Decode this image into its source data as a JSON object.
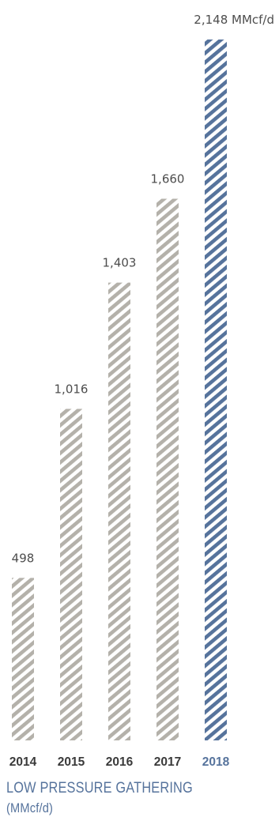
{
  "chart_data": {
    "type": "bar",
    "categories": [
      "2014",
      "2015",
      "2016",
      "2017",
      "2018"
    ],
    "values": [
      498,
      1016,
      1403,
      1660,
      2148
    ],
    "value_labels": [
      "498",
      "1,016",
      "1,403",
      "1,660",
      "2,148 MMcf/d"
    ],
    "title": "LOW PRESSURE GATHERING",
    "subtitle": "(MMcf/d)",
    "xlabel": "",
    "ylabel": "",
    "ylim": [
      0,
      2148
    ],
    "grid": false,
    "legend": "none",
    "highlight_index": 4
  },
  "colors": {
    "bar": "#b4b1aa",
    "highlight": "#56739c",
    "year_text": "#3a3a3a",
    "caption": "#56739c"
  }
}
